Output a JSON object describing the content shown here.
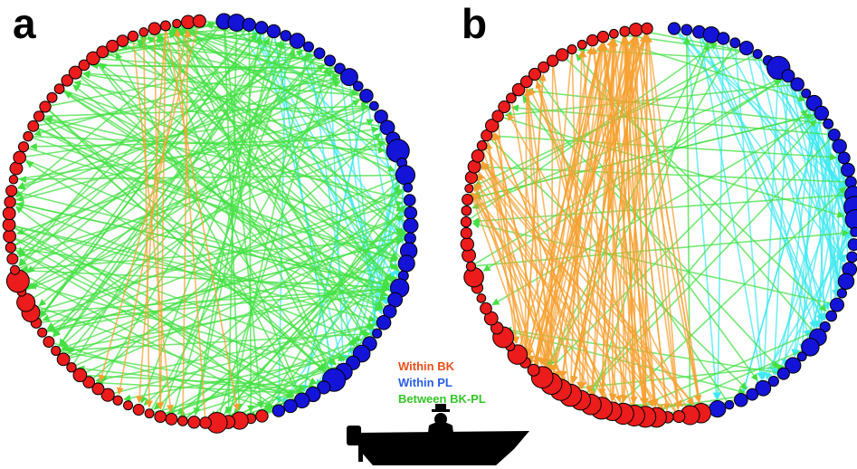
{
  "panels": [
    {
      "label": "a"
    },
    {
      "label": "b"
    }
  ],
  "legend": [
    {
      "label": "Within BK"
    },
    {
      "label": "Within PL"
    },
    {
      "label": "Between BK-PL"
    }
  ]
}
